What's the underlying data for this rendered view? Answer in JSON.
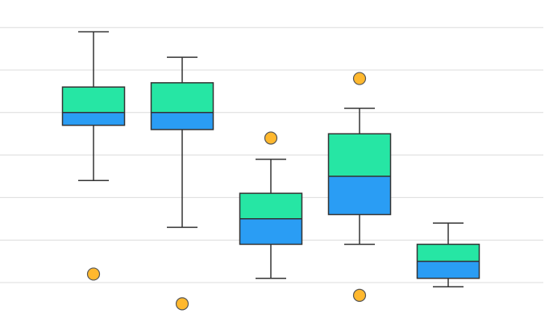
{
  "chart_data": {
    "type": "boxplot",
    "title": "",
    "xlabel": "",
    "ylabel": "",
    "ylim": [
      0,
      6.5
    ],
    "grid": true,
    "gridlines": [
      0,
      1,
      2,
      3,
      4,
      5,
      6
    ],
    "legend": "none",
    "colors": {
      "upper": "#26e6a4",
      "lower": "#2a9df4",
      "outlier": "#ffb82e",
      "grid": "#dcdcdc",
      "stroke": "#333333"
    },
    "boxes": [
      {
        "min": 2.4,
        "q1": 3.7,
        "median": 4.0,
        "q3": 4.6,
        "max": 5.9,
        "outliers": [
          0.2
        ]
      },
      {
        "min": 1.3,
        "q1": 3.6,
        "median": 4.0,
        "q3": 4.7,
        "max": 5.3,
        "outliers": [
          -0.5
        ]
      },
      {
        "min": 0.1,
        "q1": 0.9,
        "median": 1.5,
        "q3": 2.1,
        "max": 2.9,
        "outliers": [
          3.4
        ]
      },
      {
        "min": 0.9,
        "q1": 1.6,
        "median": 2.5,
        "q3": 3.5,
        "max": 4.1,
        "outliers": [
          4.8,
          -0.3
        ]
      },
      {
        "min": -0.1,
        "q1": 0.1,
        "median": 0.5,
        "q3": 0.9,
        "max": 1.4,
        "outliers": []
      }
    ]
  }
}
